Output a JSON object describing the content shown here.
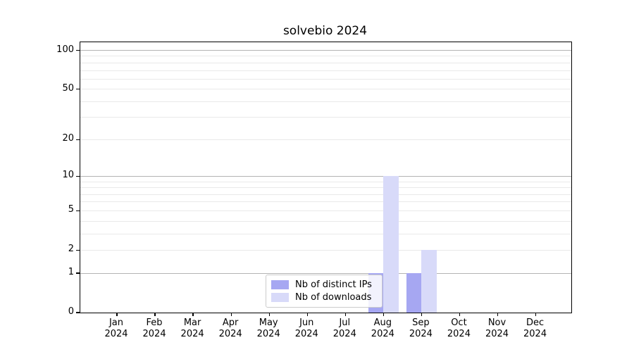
{
  "chart_data": {
    "type": "bar",
    "title": "solvebio 2024",
    "x_months": [
      "Jan",
      "Feb",
      "Mar",
      "Apr",
      "May",
      "Jun",
      "Jul",
      "Aug",
      "Sep",
      "Oct",
      "Nov",
      "Dec"
    ],
    "x_year": "2024",
    "series": [
      {
        "name": "Nb of distinct IPs",
        "color": "#a6a7f2",
        "values": [
          0,
          0,
          0,
          0,
          0,
          0,
          0,
          1,
          1,
          0,
          0,
          0
        ]
      },
      {
        "name": "Nb of downloads",
        "color": "#d8daf9",
        "values": [
          0,
          0,
          0,
          0,
          0,
          0,
          0,
          10,
          2,
          0,
          0,
          0
        ]
      }
    ],
    "y_scale": "log1p",
    "ylim": [
      0,
      116
    ],
    "y_tick_labels": [
      0,
      1,
      2,
      5,
      10,
      20,
      50,
      100
    ],
    "y_grid_major": [
      1,
      10,
      100
    ],
    "y_grid_minor": [
      2,
      3,
      4,
      5,
      6,
      7,
      8,
      9,
      20,
      30,
      40,
      50,
      60,
      70,
      80,
      90
    ],
    "legend_position": "lower center",
    "grid": "on",
    "colors": {
      "grid_major": "#b3b3b3",
      "grid_minor": "#e9e9e9",
      "axis": "#000000"
    }
  }
}
